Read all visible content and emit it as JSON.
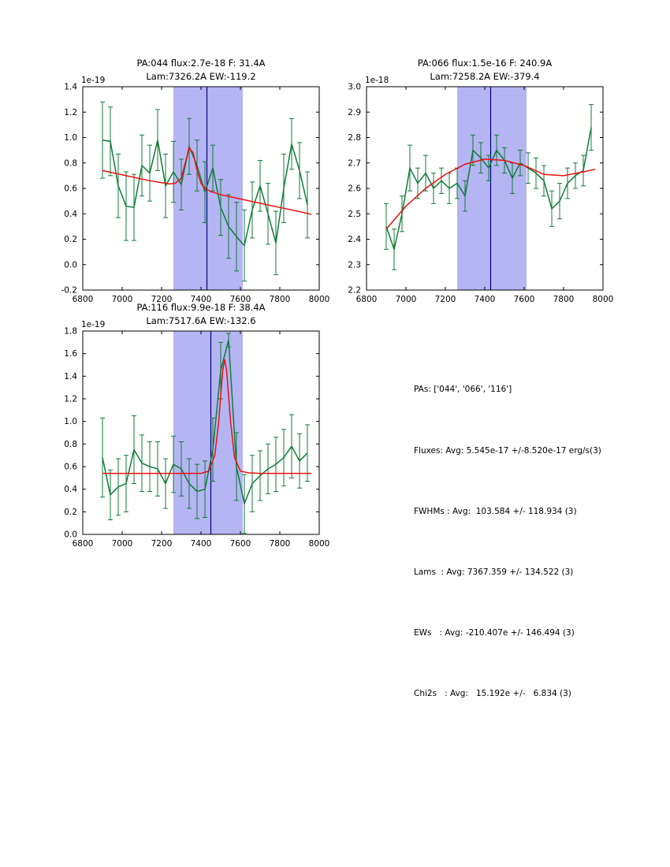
{
  "style": {
    "colors": {
      "data_green": "#0f7d35",
      "fit_red": "#ee1111",
      "vline_blue": "#000080",
      "band_lavender": "#b5b5f3",
      "axis_black": "#000000",
      "background": "#ffffff"
    }
  },
  "stats": {
    "lines": [
      "PAs: ['044', '066', '116']",
      "Fluxes: Avg: 5.545e-17 +/-8.520e-17 erg/s(3)",
      "FWHMs : Avg:  103.584 +/- 118.934 (3)",
      "Lams  : Avg: 7367.359 +/- 134.522 (3)",
      "EWs   : Avg: -210.407e +/- 146.494 (3)",
      "Chi2s   : Avg:   15.192e +/-   6.834 (3)"
    ]
  },
  "chart_data": [
    {
      "type": "line",
      "title_line1": "PA:044 flux:2.7e-18 F: 31.4A",
      "title_line2": "Lam:7326.2A EW:-119.2",
      "offset_label": "1e-19",
      "xlabel": "",
      "ylabel": "",
      "xlim": [
        6800,
        8000
      ],
      "ylim": [
        -0.2,
        1.4
      ],
      "xticks": [
        6800,
        7000,
        7200,
        7400,
        7600,
        7800,
        8000
      ],
      "yticks": [
        -0.2,
        0.0,
        0.2,
        0.4,
        0.6,
        0.8,
        1.0,
        1.2,
        1.4
      ],
      "ytick_decimals": 1,
      "band": [
        7260,
        7612
      ],
      "vline": 7430,
      "grid": false,
      "legend": "none",
      "series": [
        {
          "name": "spectrum",
          "x": [
            6900,
            6940,
            6980,
            7020,
            7060,
            7100,
            7140,
            7180,
            7220,
            7260,
            7300,
            7340,
            7380,
            7420,
            7460,
            7500,
            7540,
            7580,
            7620,
            7660,
            7700,
            7740,
            7780,
            7820,
            7860,
            7900,
            7940
          ],
          "y": [
            0.98,
            0.97,
            0.62,
            0.46,
            0.45,
            0.78,
            0.72,
            0.98,
            0.62,
            0.73,
            0.63,
            0.93,
            0.78,
            0.57,
            0.76,
            0.45,
            0.3,
            0.22,
            0.15,
            0.43,
            0.62,
            0.4,
            0.17,
            0.6,
            0.95,
            0.74,
            0.47
          ],
          "yerr": [
            0.3,
            0.27,
            0.25,
            0.27,
            0.26,
            0.24,
            0.22,
            0.24,
            0.25,
            0.24,
            0.2,
            0.22,
            0.2,
            0.24,
            0.18,
            0.22,
            0.25,
            0.27,
            0.28,
            0.22,
            0.2,
            0.24,
            0.25,
            0.27,
            0.2,
            0.22,
            0.26
          ]
        },
        {
          "name": "gaussian-fit",
          "x": [
            6900,
            6960,
            7020,
            7080,
            7140,
            7200,
            7240,
            7270,
            7300,
            7320,
            7340,
            7360,
            7380,
            7400,
            7420,
            7450,
            7500,
            7560,
            7620,
            7680,
            7740,
            7800,
            7860,
            7920,
            7960
          ],
          "y": [
            0.74,
            0.72,
            0.7,
            0.68,
            0.66,
            0.645,
            0.635,
            0.64,
            0.68,
            0.8,
            0.92,
            0.88,
            0.74,
            0.64,
            0.6,
            0.575,
            0.55,
            0.53,
            0.51,
            0.49,
            0.47,
            0.45,
            0.43,
            0.41,
            0.395
          ]
        }
      ]
    },
    {
      "type": "line",
      "title_line1": "PA:066 flux:1.5e-16 F: 240.9A",
      "title_line2": "Lam:7258.2A EW:-379.4",
      "offset_label": "1e-18",
      "xlabel": "",
      "ylabel": "",
      "xlim": [
        6800,
        8000
      ],
      "ylim": [
        2.2,
        3.0
      ],
      "xticks": [
        6800,
        7000,
        7200,
        7400,
        7600,
        7800,
        8000
      ],
      "yticks": [
        2.2,
        2.3,
        2.4,
        2.5,
        2.6,
        2.7,
        2.8,
        2.9,
        3.0
      ],
      "ytick_decimals": 1,
      "band": [
        7260,
        7612
      ],
      "vline": 7430,
      "grid": false,
      "legend": "none",
      "series": [
        {
          "name": "spectrum",
          "x": [
            6900,
            6940,
            6980,
            7020,
            7060,
            7100,
            7140,
            7180,
            7220,
            7260,
            7300,
            7340,
            7380,
            7420,
            7460,
            7500,
            7540,
            7580,
            7620,
            7660,
            7700,
            7740,
            7780,
            7820,
            7860,
            7900,
            7940
          ],
          "y": [
            2.45,
            2.36,
            2.5,
            2.68,
            2.62,
            2.66,
            2.6,
            2.63,
            2.6,
            2.62,
            2.57,
            2.75,
            2.72,
            2.68,
            2.75,
            2.71,
            2.64,
            2.7,
            2.68,
            2.66,
            2.63,
            2.52,
            2.55,
            2.62,
            2.65,
            2.67,
            2.84
          ],
          "yerr": [
            0.09,
            0.08,
            0.07,
            0.09,
            0.06,
            0.07,
            0.06,
            0.05,
            0.06,
            0.06,
            0.06,
            0.06,
            0.06,
            0.05,
            0.06,
            0.05,
            0.06,
            0.05,
            0.06,
            0.06,
            0.06,
            0.07,
            0.07,
            0.06,
            0.05,
            0.06,
            0.09
          ]
        },
        {
          "name": "gaussian-fit",
          "x": [
            6900,
            7000,
            7100,
            7200,
            7300,
            7400,
            7500,
            7600,
            7700,
            7800,
            7900,
            7960
          ],
          "y": [
            2.44,
            2.53,
            2.6,
            2.655,
            2.695,
            2.715,
            2.71,
            2.69,
            2.655,
            2.65,
            2.665,
            2.675
          ]
        }
      ]
    },
    {
      "type": "line",
      "title_line1": "PA:116 flux:9.9e-18 F: 38.4A",
      "title_line2": "Lam:7517.6A EW:-132.6",
      "offset_label": "1e-19",
      "xlabel": "",
      "ylabel": "",
      "xlim": [
        6800,
        8000
      ],
      "ylim": [
        0.0,
        1.8
      ],
      "xticks": [
        6800,
        7000,
        7200,
        7400,
        7600,
        7800,
        8000
      ],
      "yticks": [
        0.0,
        0.2,
        0.4,
        0.6,
        0.8,
        1.0,
        1.2,
        1.4,
        1.6,
        1.8
      ],
      "ytick_decimals": 1,
      "band": [
        7260,
        7612
      ],
      "vline": 7450,
      "grid": false,
      "legend": "none",
      "series": [
        {
          "name": "spectrum",
          "x": [
            6900,
            6940,
            6980,
            7020,
            7060,
            7100,
            7140,
            7180,
            7220,
            7260,
            7300,
            7340,
            7380,
            7420,
            7460,
            7500,
            7540,
            7580,
            7620,
            7660,
            7700,
            7740,
            7780,
            7820,
            7860,
            7900,
            7940
          ],
          "y": [
            0.68,
            0.35,
            0.42,
            0.45,
            0.75,
            0.63,
            0.6,
            0.58,
            0.45,
            0.62,
            0.58,
            0.45,
            0.38,
            0.4,
            0.75,
            1.45,
            1.72,
            0.6,
            0.27,
            0.45,
            0.52,
            0.58,
            0.62,
            0.68,
            0.78,
            0.65,
            0.72
          ],
          "yerr": [
            0.35,
            0.22,
            0.25,
            0.25,
            0.3,
            0.25,
            0.22,
            0.24,
            0.22,
            0.25,
            0.24,
            0.22,
            0.24,
            0.25,
            0.28,
            0.25,
            0.06,
            0.3,
            0.26,
            0.25,
            0.22,
            0.22,
            0.24,
            0.25,
            0.28,
            0.24,
            0.25
          ]
        },
        {
          "name": "gaussian-fit",
          "x": [
            6900,
            7100,
            7300,
            7400,
            7440,
            7470,
            7490,
            7510,
            7520,
            7530,
            7550,
            7570,
            7600,
            7640,
            7700,
            7800,
            7960
          ],
          "y": [
            0.54,
            0.54,
            0.54,
            0.54,
            0.56,
            0.7,
            1.0,
            1.45,
            1.55,
            1.45,
            1.0,
            0.68,
            0.56,
            0.545,
            0.54,
            0.54,
            0.54
          ]
        }
      ]
    }
  ]
}
